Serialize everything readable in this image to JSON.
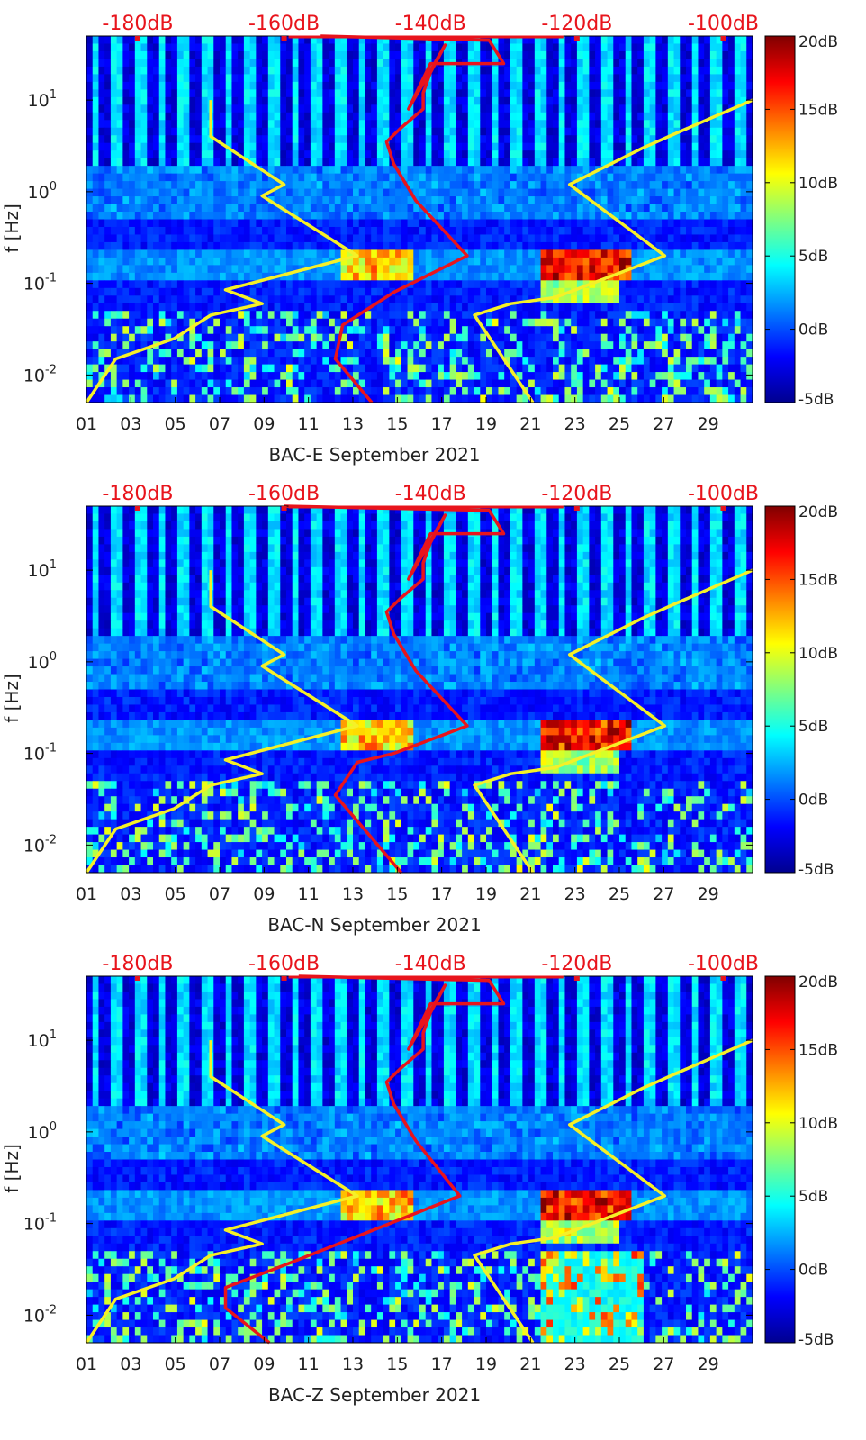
{
  "chart_data": [
    {
      "type": "heatmap",
      "station": "BAC-E",
      "xlabel": "BAC-E September 2021",
      "ylabel": "f [Hz]",
      "x_ticks": [
        "01",
        "03",
        "05",
        "07",
        "09",
        "11",
        "13",
        "15",
        "17",
        "19",
        "21",
        "23",
        "25",
        "27",
        "29"
      ],
      "y_ticks": [
        "10-2",
        "10-1",
        "100",
        "101"
      ],
      "xlim_days": [
        1,
        31
      ],
      "ylim_hz": [
        0.005,
        50
      ],
      "colorbar": {
        "ticks": [
          "20dB",
          "15dB",
          "10dB",
          "5dB",
          "0dB",
          "-5dB"
        ],
        "range": [
          -5,
          20
        ]
      },
      "top_axis": {
        "ticks": [
          "-180dB",
          "-160dB",
          "-140dB",
          "-120dB",
          "-100dB"
        ],
        "range": [
          -187,
          -96
        ],
        "color": "#e8141c"
      },
      "noise_model_low": {
        "name": "yellow",
        "color": "#f5f028",
        "db": [
          -187,
          -183,
          -175,
          -170,
          -163,
          -168,
          -150,
          -163,
          -160,
          -170,
          -170
        ],
        "f": [
          0.005,
          0.015,
          0.025,
          0.045,
          0.06,
          0.085,
          0.2,
          0.9,
          1.2,
          4,
          10
        ]
      },
      "noise_model_high": {
        "name": "yellow",
        "color": "#f5f028",
        "db": [
          -126,
          -134,
          -129,
          -123,
          -108,
          -121,
          -111,
          -106,
          -96
        ],
        "f": [
          0.005,
          0.045,
          0.06,
          0.07,
          0.2,
          1.2,
          3,
          4.5,
          10
        ]
      },
      "median_psd": {
        "name": "red",
        "color": "#e8141c",
        "db": [
          -148,
          -153,
          -152,
          -145,
          -135,
          -142,
          -145,
          -146,
          -144,
          -141,
          -141,
          -140,
          -138,
          -143,
          -140,
          -130,
          -132,
          -155
        ],
        "f": [
          0.005,
          0.015,
          0.035,
          0.08,
          0.2,
          0.8,
          2,
          3.5,
          5,
          8,
          12,
          20,
          40,
          8,
          25,
          25,
          45,
          50
        ]
      }
    },
    {
      "type": "heatmap",
      "station": "BAC-N",
      "xlabel": "BAC-N September 2021",
      "ylabel": "f [Hz]",
      "x_ticks": [
        "01",
        "03",
        "05",
        "07",
        "09",
        "11",
        "13",
        "15",
        "17",
        "19",
        "21",
        "23",
        "25",
        "27",
        "29"
      ],
      "y_ticks": [
        "10-2",
        "10-1",
        "100",
        "101"
      ],
      "xlim_days": [
        1,
        31
      ],
      "ylim_hz": [
        0.005,
        50
      ],
      "colorbar": {
        "ticks": [
          "20dB",
          "15dB",
          "10dB",
          "5dB",
          "0dB",
          "-5dB"
        ],
        "range": [
          -5,
          20
        ]
      },
      "top_axis": {
        "ticks": [
          "-180dB",
          "-160dB",
          "-140dB",
          "-120dB",
          "-100dB"
        ],
        "range": [
          -187,
          -96
        ],
        "color": "#e8141c"
      },
      "noise_model_low": {
        "name": "yellow",
        "color": "#f5f028",
        "db": [
          -187,
          -183,
          -175,
          -170,
          -163,
          -168,
          -150,
          -163,
          -160,
          -170,
          -170
        ],
        "f": [
          0.005,
          0.015,
          0.025,
          0.045,
          0.06,
          0.085,
          0.2,
          0.9,
          1.2,
          4,
          10
        ]
      },
      "noise_model_high": {
        "name": "yellow",
        "color": "#f5f028",
        "db": [
          -126,
          -134,
          -129,
          -123,
          -108,
          -121,
          -111,
          -106,
          -96
        ],
        "f": [
          0.005,
          0.045,
          0.06,
          0.07,
          0.2,
          1.2,
          3,
          4.5,
          10
        ]
      },
      "median_psd": {
        "name": "red",
        "color": "#e8141c",
        "db": [
          -144,
          -153,
          -150,
          -145,
          -135,
          -142,
          -145,
          -146,
          -144,
          -141,
          -141,
          -140,
          -138,
          -143,
          -140,
          -130,
          -132,
          -160
        ],
        "f": [
          0.005,
          0.035,
          0.08,
          0.1,
          0.2,
          0.8,
          2,
          3.5,
          5,
          8,
          12,
          20,
          40,
          8,
          25,
          25,
          45,
          50
        ]
      }
    },
    {
      "type": "heatmap",
      "station": "BAC-Z",
      "xlabel": "BAC-Z September 2021",
      "ylabel": "f [Hz]",
      "x_ticks": [
        "01",
        "03",
        "05",
        "07",
        "09",
        "11",
        "13",
        "15",
        "17",
        "19",
        "21",
        "23",
        "25",
        "27",
        "29"
      ],
      "y_ticks": [
        "10-2",
        "10-1",
        "100",
        "101"
      ],
      "xlim_days": [
        1,
        31
      ],
      "ylim_hz": [
        0.005,
        50
      ],
      "colorbar": {
        "ticks": [
          "20dB",
          "15dB",
          "10dB",
          "5dB",
          "0dB",
          "-5dB"
        ],
        "range": [
          -5,
          20
        ]
      },
      "top_axis": {
        "ticks": [
          "-180dB",
          "-160dB",
          "-140dB",
          "-120dB",
          "-100dB"
        ],
        "range": [
          -187,
          -96
        ],
        "color": "#e8141c"
      },
      "noise_model_low": {
        "name": "yellow",
        "color": "#f5f028",
        "db": [
          -187,
          -183,
          -175,
          -170,
          -163,
          -168,
          -150,
          -163,
          -160,
          -170,
          -170
        ],
        "f": [
          0.005,
          0.015,
          0.025,
          0.045,
          0.06,
          0.085,
          0.2,
          0.9,
          1.2,
          4,
          10
        ]
      },
      "noise_model_high": {
        "name": "yellow",
        "color": "#f5f028",
        "db": [
          -126,
          -134,
          -129,
          -123,
          -108,
          -121,
          -111,
          -106,
          -96
        ],
        "f": [
          0.005,
          0.045,
          0.06,
          0.07,
          0.2,
          1.2,
          3,
          4.5,
          10
        ]
      },
      "median_psd": {
        "name": "red",
        "color": "#e8141c",
        "db": [
          -162,
          -168,
          -168,
          -160,
          -136,
          -142,
          -145,
          -146,
          -144,
          -141,
          -141,
          -140,
          -138,
          -143,
          -140,
          -130,
          -132,
          -158
        ],
        "f": [
          0.005,
          0.012,
          0.02,
          0.035,
          0.2,
          0.8,
          2,
          3.5,
          5,
          8,
          12,
          20,
          40,
          8,
          25,
          25,
          45,
          50
        ]
      }
    }
  ]
}
